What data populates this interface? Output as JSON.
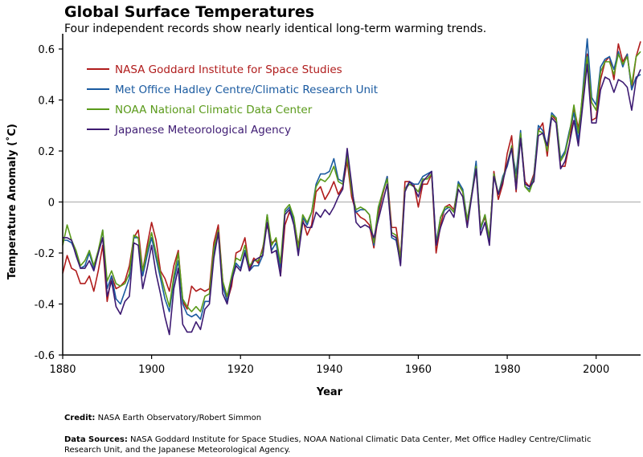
{
  "chart_data": {
    "type": "line",
    "title": "Global Surface Temperatures",
    "subtitle": "Four independent records show nearly identical long-term warming trends.",
    "xlabel": "Year",
    "ylabel": "Temperature Anomaly (˚C)",
    "xlim": [
      1880,
      2010
    ],
    "ylim": [
      -0.6,
      0.65
    ],
    "x_ticks": [
      1880,
      1900,
      1920,
      1940,
      1960,
      1980,
      2000
    ],
    "y_ticks": [
      {
        "value": 0.6,
        "label": "0.6"
      },
      {
        "value": 0.4,
        "label": "0.4"
      },
      {
        "value": 0.2,
        "label": "0.2"
      },
      {
        "value": 0,
        "label": "0"
      },
      {
        "value": -0.2,
        "label": "-0.2"
      },
      {
        "value": -0.4,
        "label": "-0.4"
      },
      {
        "value": -0.6,
        "label": "-0.6"
      }
    ],
    "zero_line": true,
    "grid": false,
    "legend_position": "top-left",
    "x_start": 1880,
    "series": [
      {
        "name": "NASA Goddard Institute for Space Studies",
        "color": "#b01c1c",
        "values": [
          -0.28,
          -0.21,
          -0.26,
          -0.27,
          -0.32,
          -0.32,
          -0.29,
          -0.35,
          -0.27,
          -0.17,
          -0.39,
          -0.29,
          -0.34,
          -0.33,
          -0.31,
          -0.25,
          -0.14,
          -0.11,
          -0.27,
          -0.17,
          -0.08,
          -0.15,
          -0.27,
          -0.3,
          -0.35,
          -0.25,
          -0.19,
          -0.39,
          -0.42,
          -0.33,
          -0.35,
          -0.34,
          -0.35,
          -0.34,
          -0.16,
          -0.09,
          -0.31,
          -0.39,
          -0.33,
          -0.2,
          -0.19,
          -0.14,
          -0.26,
          -0.22,
          -0.24,
          -0.18,
          -0.09,
          -0.16,
          -0.15,
          -0.29,
          -0.09,
          -0.04,
          -0.07,
          -0.17,
          -0.07,
          -0.13,
          -0.09,
          0.04,
          0.06,
          0.01,
          0.04,
          0.08,
          0.03,
          0.06,
          0.16,
          0.02,
          -0.04,
          -0.06,
          -0.07,
          -0.09,
          -0.18,
          -0.05,
          0.03,
          0.1,
          -0.1,
          -0.1,
          -0.22,
          0.08,
          0.08,
          0.07,
          -0.02,
          0.07,
          0.07,
          0.11,
          -0.2,
          -0.09,
          -0.02,
          -0.01,
          -0.03,
          0.07,
          0.04,
          -0.09,
          0.03,
          0.13,
          -0.1,
          -0.06,
          -0.15,
          0.12,
          0.01,
          0.07,
          0.19,
          0.26,
          0.04,
          0.27,
          0.08,
          0.06,
          0.11,
          0.28,
          0.31,
          0.18,
          0.34,
          0.32,
          0.14,
          0.14,
          0.23,
          0.37,
          0.29,
          0.4,
          0.58,
          0.32,
          0.33,
          0.48,
          0.55,
          0.57,
          0.48,
          0.62,
          0.55,
          0.58,
          0.44,
          0.57,
          0.63
        ]
      },
      {
        "name": "Met Office Hadley Centre/Climatic Research Unit",
        "color": "#1a5aa0",
        "values": [
          -0.15,
          -0.15,
          -0.16,
          -0.2,
          -0.26,
          -0.25,
          -0.2,
          -0.26,
          -0.2,
          -0.11,
          -0.34,
          -0.29,
          -0.38,
          -0.4,
          -0.35,
          -0.3,
          -0.14,
          -0.14,
          -0.29,
          -0.21,
          -0.14,
          -0.22,
          -0.3,
          -0.38,
          -0.43,
          -0.31,
          -0.23,
          -0.4,
          -0.44,
          -0.45,
          -0.44,
          -0.46,
          -0.39,
          -0.39,
          -0.2,
          -0.12,
          -0.33,
          -0.39,
          -0.3,
          -0.24,
          -0.26,
          -0.19,
          -0.27,
          -0.25,
          -0.25,
          -0.21,
          -0.05,
          -0.19,
          -0.16,
          -0.26,
          -0.04,
          -0.02,
          -0.07,
          -0.2,
          -0.06,
          -0.09,
          -0.04,
          0.07,
          0.11,
          0.11,
          0.12,
          0.17,
          0.09,
          0.08,
          0.19,
          0.05,
          -0.04,
          -0.03,
          -0.03,
          -0.05,
          -0.17,
          -0.03,
          0.04,
          0.1,
          -0.14,
          -0.15,
          -0.24,
          0.05,
          0.08,
          0.07,
          0.07,
          0.1,
          0.11,
          0.12,
          -0.16,
          -0.06,
          -0.03,
          -0.02,
          -0.04,
          0.08,
          0.05,
          -0.07,
          0.03,
          0.16,
          -0.11,
          -0.05,
          -0.15,
          0.11,
          0.03,
          0.1,
          0.14,
          0.21,
          0.11,
          0.28,
          0.06,
          0.05,
          0.1,
          0.3,
          0.28,
          0.22,
          0.35,
          0.33,
          0.17,
          0.2,
          0.28,
          0.35,
          0.24,
          0.44,
          0.64,
          0.41,
          0.38,
          0.53,
          0.56,
          0.57,
          0.52,
          0.59,
          0.53,
          0.58,
          0.44,
          0.49,
          0.5
        ]
      },
      {
        "name": "NOAA National Climatic Data Center",
        "color": "#5a9a1a",
        "values": [
          -0.17,
          -0.09,
          -0.15,
          -0.19,
          -0.25,
          -0.23,
          -0.19,
          -0.25,
          -0.19,
          -0.11,
          -0.31,
          -0.27,
          -0.32,
          -0.33,
          -0.32,
          -0.28,
          -0.13,
          -0.14,
          -0.27,
          -0.19,
          -0.12,
          -0.2,
          -0.28,
          -0.35,
          -0.41,
          -0.29,
          -0.2,
          -0.38,
          -0.41,
          -0.43,
          -0.41,
          -0.43,
          -0.37,
          -0.36,
          -0.18,
          -0.11,
          -0.31,
          -0.37,
          -0.29,
          -0.22,
          -0.23,
          -0.17,
          -0.25,
          -0.23,
          -0.23,
          -0.19,
          -0.05,
          -0.17,
          -0.14,
          -0.24,
          -0.03,
          -0.01,
          -0.06,
          -0.18,
          -0.05,
          -0.08,
          -0.04,
          0.06,
          0.09,
          0.08,
          0.1,
          0.14,
          0.08,
          0.07,
          0.18,
          0.04,
          -0.03,
          -0.02,
          -0.03,
          -0.05,
          -0.16,
          -0.02,
          0.04,
          0.09,
          -0.12,
          -0.13,
          -0.22,
          0.05,
          0.07,
          0.06,
          0.04,
          0.09,
          0.09,
          0.11,
          -0.17,
          -0.06,
          -0.02,
          -0.02,
          -0.04,
          0.07,
          0.04,
          -0.07,
          0.03,
          0.14,
          -0.1,
          -0.05,
          -0.14,
          0.11,
          0.03,
          0.09,
          0.15,
          0.22,
          0.08,
          0.27,
          0.06,
          0.04,
          0.09,
          0.28,
          0.27,
          0.2,
          0.34,
          0.33,
          0.16,
          0.19,
          0.27,
          0.38,
          0.27,
          0.43,
          0.57,
          0.39,
          0.36,
          0.51,
          0.55,
          0.55,
          0.5,
          0.58,
          0.54,
          0.57,
          0.46,
          0.57,
          0.59
        ]
      },
      {
        "name": "Japanese Meteorological Agency",
        "color": "#3d1a72",
        "values": [
          -0.14,
          -0.14,
          -0.15,
          -0.21,
          -0.26,
          -0.26,
          -0.23,
          -0.27,
          -0.2,
          -0.14,
          -0.37,
          -0.31,
          -0.41,
          -0.44,
          -0.39,
          -0.37,
          -0.16,
          -0.17,
          -0.34,
          -0.26,
          -0.17,
          -0.28,
          -0.36,
          -0.45,
          -0.52,
          -0.34,
          -0.26,
          -0.48,
          -0.51,
          -0.51,
          -0.47,
          -0.5,
          -0.42,
          -0.4,
          -0.22,
          -0.12,
          -0.36,
          -0.4,
          -0.31,
          -0.25,
          -0.27,
          -0.2,
          -0.27,
          -0.23,
          -0.22,
          -0.21,
          -0.08,
          -0.2,
          -0.19,
          -0.29,
          -0.05,
          -0.03,
          -0.09,
          -0.21,
          -0.08,
          -0.1,
          -0.1,
          -0.04,
          -0.06,
          -0.03,
          -0.05,
          -0.02,
          0.02,
          0.05,
          0.21,
          0.07,
          -0.08,
          -0.1,
          -0.09,
          -0.1,
          -0.14,
          -0.07,
          0.0,
          0.07,
          -0.13,
          -0.14,
          -0.25,
          0.04,
          0.08,
          0.06,
          0.02,
          0.08,
          0.1,
          0.12,
          -0.17,
          -0.1,
          -0.05,
          -0.03,
          -0.06,
          0.05,
          0.02,
          -0.1,
          0.02,
          0.13,
          -0.13,
          -0.08,
          -0.17,
          0.1,
          0.03,
          0.08,
          0.15,
          0.21,
          0.05,
          0.25,
          0.07,
          0.06,
          0.08,
          0.26,
          0.27,
          0.22,
          0.33,
          0.31,
          0.13,
          0.16,
          0.23,
          0.32,
          0.22,
          0.38,
          0.54,
          0.31,
          0.31,
          0.44,
          0.49,
          0.48,
          0.43,
          0.48,
          0.47,
          0.45,
          0.36,
          0.48,
          0.52
        ]
      }
    ]
  },
  "credit": {
    "label": "Credit:",
    "text": "NASA Earth Observatory/Robert Simmon"
  },
  "sources": {
    "label": "Data Sources:",
    "text": "NASA Goddard Institute for Space Studies, NOAA National Climatic Data Center, Met Office Hadley Centre/Climatic Research Unit, and the Japanese Meteorological Agency."
  }
}
